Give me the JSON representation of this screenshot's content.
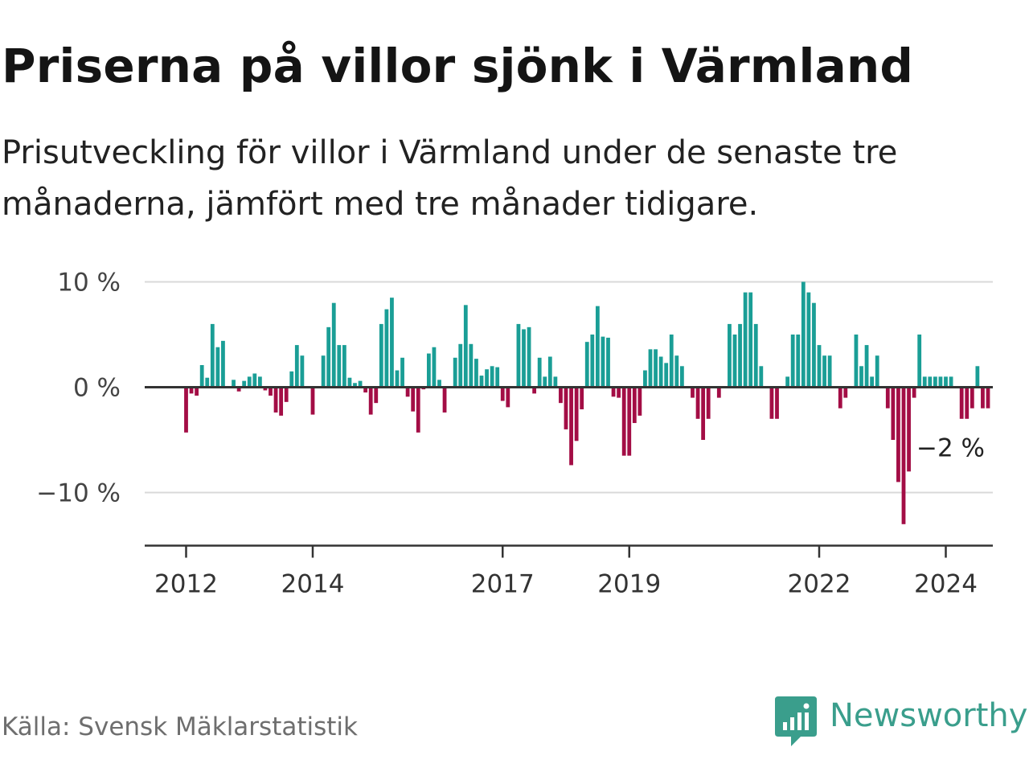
{
  "header": {
    "title": "Priserna på villor sjönk i Värmland",
    "subtitle": "Prisutveckling för villor i Värmland under de senaste tre månaderna, jämfört med tre månader tidigare."
  },
  "footer": {
    "source": "Källa: Svensk Mäklarstatistik",
    "brand": "Newsworthy",
    "brand_icon": "newsworthy-logo-icon"
  },
  "colors": {
    "positive": "#1a9e96",
    "negative": "#a30d45",
    "brand": "#3a9e8c",
    "grid": "#d9d9d9",
    "zero_line": "#333333"
  },
  "chart_data": {
    "type": "bar",
    "title": "Priserna på villor sjönk i Värmland",
    "xlabel": "",
    "ylabel": "",
    "unit": "%",
    "ylim": [
      -15,
      10
    ],
    "yticks": [
      10,
      0,
      -10
    ],
    "ytick_labels": [
      "10 %",
      "0 %",
      "−10 %"
    ],
    "start_year": 2012,
    "start_month": 1,
    "xticks": [
      {
        "year": 2012,
        "label": "2012"
      },
      {
        "year": 2014,
        "label": "2014"
      },
      {
        "year": 2017,
        "label": "2017"
      },
      {
        "year": 2019,
        "label": "2019"
      },
      {
        "year": 2022,
        "label": "2022"
      },
      {
        "year": 2024,
        "label": "2024"
      }
    ],
    "annotation": {
      "label": "−2 %",
      "value": -2
    },
    "values": [
      -4.3,
      -0.6,
      -0.8,
      2.1,
      0.9,
      6.0,
      3.8,
      4.4,
      0,
      0.7,
      -0.4,
      0.6,
      1.0,
      1.3,
      1.0,
      -0.3,
      -0.8,
      -2.4,
      -2.7,
      -1.4,
      1.5,
      4.0,
      3.0,
      0,
      -2.6,
      0,
      3.0,
      5.7,
      8.0,
      4.0,
      4.0,
      0.9,
      0.4,
      0.6,
      -0.5,
      -2.6,
      -1.5,
      6.0,
      7.4,
      8.5,
      1.6,
      2.8,
      -0.9,
      -2.3,
      -4.3,
      -0.2,
      3.2,
      3.8,
      0.7,
      -2.4,
      0,
      2.8,
      4.1,
      7.8,
      4.1,
      2.7,
      1.1,
      1.7,
      2.0,
      1.9,
      -1.3,
      -1.9,
      0,
      6.0,
      5.5,
      5.7,
      -0.6,
      2.8,
      1.0,
      2.9,
      1.0,
      -1.5,
      -4.0,
      -7.4,
      -5.1,
      -2.1,
      4.3,
      5.0,
      7.7,
      4.8,
      4.7,
      -0.9,
      -1.0,
      -6.5,
      -6.5,
      -3.4,
      -2.7,
      1.6,
      3.6,
      3.6,
      2.9,
      2.3,
      5.0,
      3.0,
      2.0,
      0,
      -1.0,
      -3.0,
      -5.0,
      -3.0,
      0,
      -1.0,
      0,
      6.0,
      5.0,
      6.0,
      9.0,
      9.0,
      6.0,
      2.0,
      0,
      -3.0,
      -3.0,
      0,
      1.0,
      5.0,
      5.0,
      10.0,
      9.0,
      8.0,
      4.0,
      3.0,
      3.0,
      0,
      -2.0,
      -1.0,
      0,
      5.0,
      2.0,
      4.0,
      1.0,
      3.0,
      0,
      -2.0,
      -5.0,
      -9.0,
      -13.0,
      -8.0,
      -1.0,
      5.0,
      1.0,
      1.0,
      1.0,
      1.0,
      1.0,
      1.0,
      0,
      -3.0,
      -3.0,
      -2.0,
      2.0,
      -2.0,
      -2.0
    ]
  }
}
